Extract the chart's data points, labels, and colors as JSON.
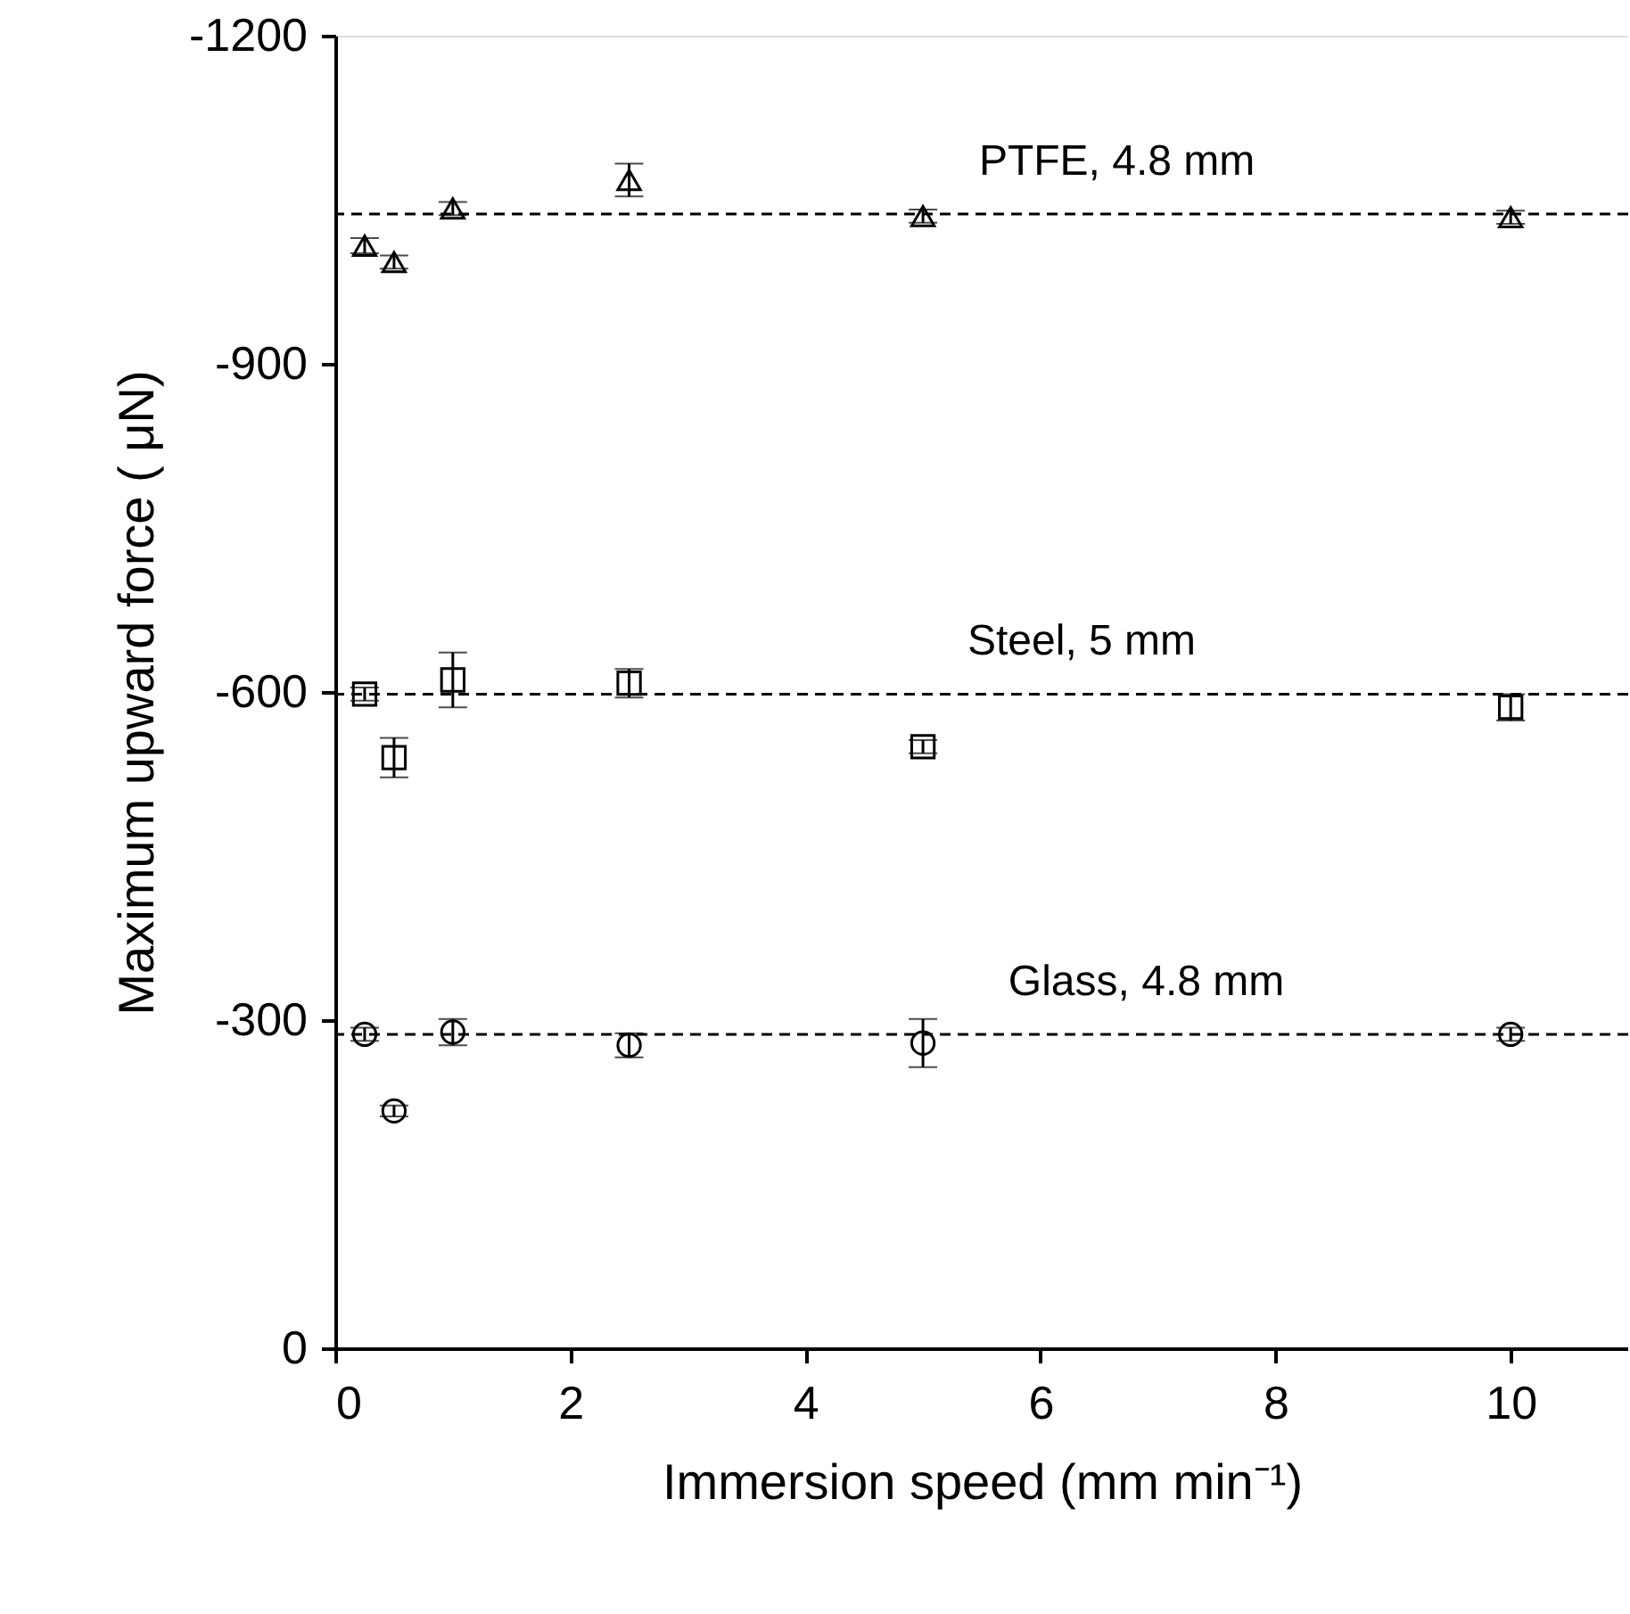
{
  "chart_data": {
    "type": "scatter",
    "xlabel": "Immersion speed (mm min⁻¹)",
    "ylabel": "Maximum upward force ( μN)",
    "xlim": [
      0,
      11
    ],
    "xticks": [
      0,
      2,
      4,
      6,
      8,
      10
    ],
    "ylim": [
      0,
      -1200
    ],
    "yticks": [
      0,
      -300,
      -600,
      -900,
      -1200
    ],
    "grid": false,
    "series": [
      {
        "color": "#000000",
        "marker": "triangle",
        "x": [
          0.25,
          0.5,
          1,
          2.5,
          5,
          10
        ],
        "values": [
          -1008,
          -993,
          -1042,
          -1068,
          -1035,
          -1034
        ],
        "errors": [
          7,
          6,
          6,
          15,
          6,
          6
        ]
      },
      {
        "color": "#000000",
        "marker": "square",
        "x": [
          0.25,
          0.5,
          1,
          2.5,
          5,
          10
        ],
        "values": [
          -598,
          -540,
          -611,
          -608,
          -550,
          -586
        ],
        "errors": [
          6,
          18,
          25,
          13,
          6,
          12
        ]
      },
      {
        "color": "#000000",
        "marker": "circle",
        "x": [
          0.25,
          0.5,
          1,
          2.5,
          5,
          10
        ],
        "values": [
          -287,
          -217,
          -289,
          -277,
          -279,
          -287
        ],
        "errors": [
          6,
          5,
          12,
          11,
          22,
          6
        ]
      }
    ],
    "ref_lines": [
      {
        "axis": "y",
        "value": -1037,
        "line_style": "dashed",
        "color": "#000000"
      },
      {
        "axis": "y",
        "value": -598,
        "line_style": "dashed",
        "color": "#000000"
      },
      {
        "axis": "y",
        "value": -287,
        "line_style": "dashed",
        "color": "#000000"
      }
    ],
    "annotations": [
      {
        "text": "PTFE, 4.8 mm",
        "x": 6.65,
        "y": -1037
      },
      {
        "text": "Steel, 5 mm",
        "x": 6.35,
        "y": -598
      },
      {
        "text": "Glass, 4.8 mm",
        "x": 6.9,
        "y": -287
      }
    ]
  }
}
